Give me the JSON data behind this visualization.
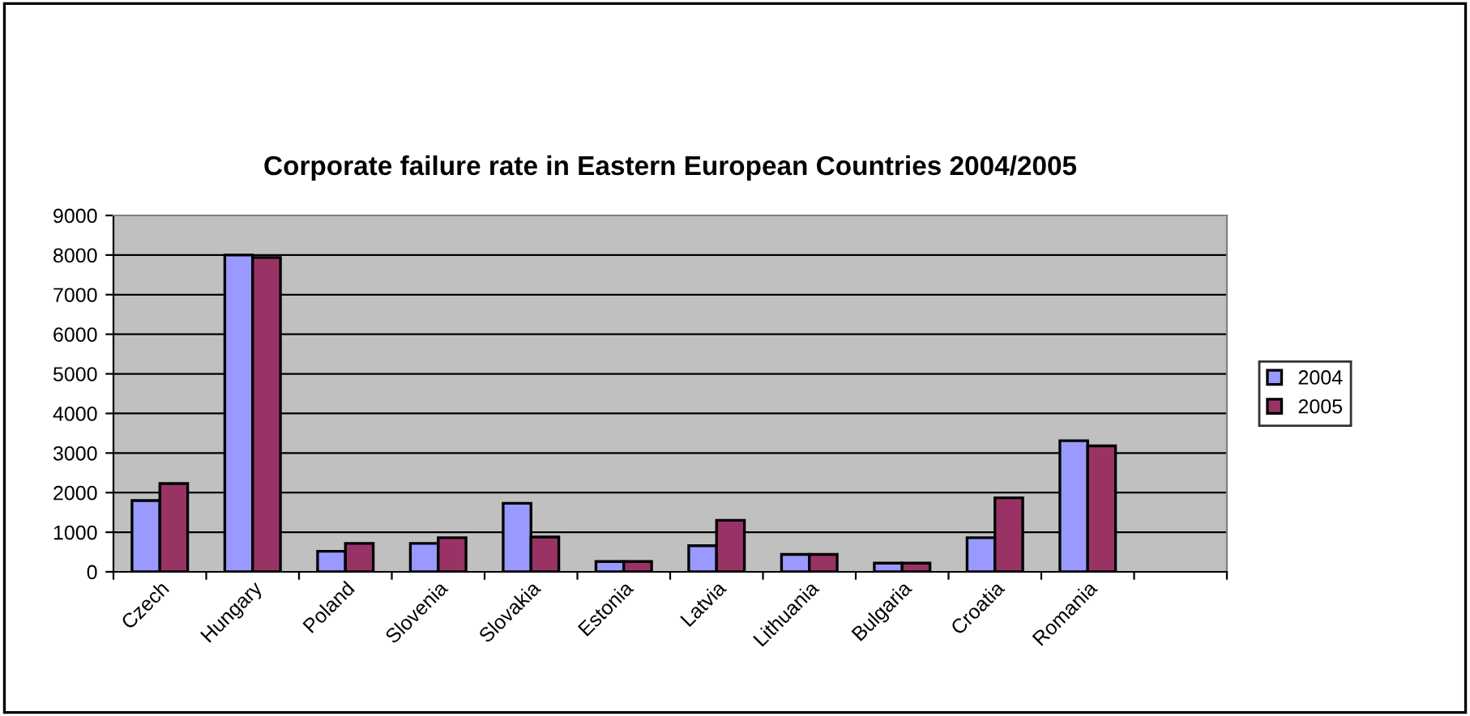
{
  "chart_data": {
    "type": "bar",
    "title": "Corporate failure rate in Eastern European Countries 2004/2005",
    "categories": [
      "Czech",
      "Hungary",
      "Poland",
      "Slovenia",
      "Slovakia",
      "Estonia",
      "Latvia",
      "Lithuania",
      "Bulgaria",
      "Croatia",
      "Romania",
      null
    ],
    "series": [
      {
        "name": "2004",
        "color": "#9999ff",
        "values": [
          1800,
          8000,
          520,
          720,
          1730,
          260,
          660,
          440,
          220,
          860,
          3310,
          null
        ]
      },
      {
        "name": "2005",
        "color": "#993366",
        "values": [
          2230,
          7940,
          720,
          860,
          880,
          260,
          1300,
          440,
          220,
          1870,
          3180,
          null
        ]
      }
    ],
    "ylim": [
      0,
      9000
    ],
    "yticks": [
      0,
      1000,
      2000,
      3000,
      4000,
      5000,
      6000,
      7000,
      8000,
      9000
    ],
    "grid": "y",
    "legend": "right"
  }
}
